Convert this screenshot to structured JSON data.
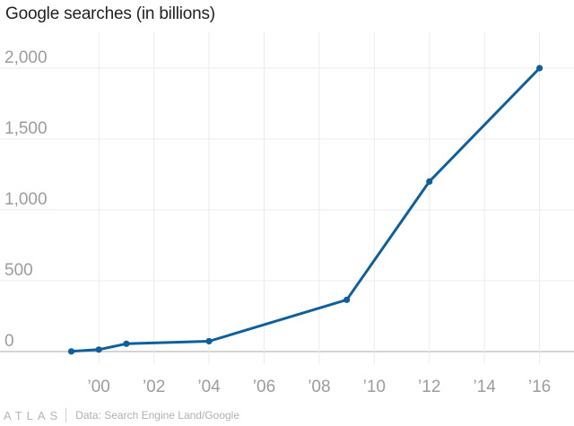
{
  "title": "Google searches (in billions)",
  "chart_data": {
    "type": "line",
    "title": "Google searches (in billions)",
    "xlabel": "",
    "ylabel": "",
    "x": [
      1999,
      2000,
      2001,
      2004,
      2009,
      2012,
      2016
    ],
    "series": [
      {
        "values": [
          1,
          14,
          55,
          73,
          365,
          1200,
          2000
        ]
      }
    ],
    "ylim": [
      0,
      2000
    ],
    "yticks": [
      0,
      500,
      1000,
      1500,
      2000
    ],
    "ytick_labels": [
      "0",
      "500",
      "1,000",
      "1,500",
      "2,000"
    ],
    "xlim": [
      1998.3,
      2016.6
    ],
    "xticks": [
      2000,
      2002,
      2004,
      2006,
      2008,
      2010,
      2012,
      2014,
      2016
    ],
    "xtick_labels": [
      "’00",
      "’02",
      "’04",
      "’06",
      "’08",
      "’10",
      "’12",
      "’14",
      "’16"
    ],
    "grid": true,
    "colors": {
      "line": "#0f5f9c",
      "grid": "#ebebeb",
      "baseline": "#aaaaaa"
    }
  },
  "footer": {
    "logo": "ATLAS",
    "source": "Data: Search Engine Land/Google"
  }
}
